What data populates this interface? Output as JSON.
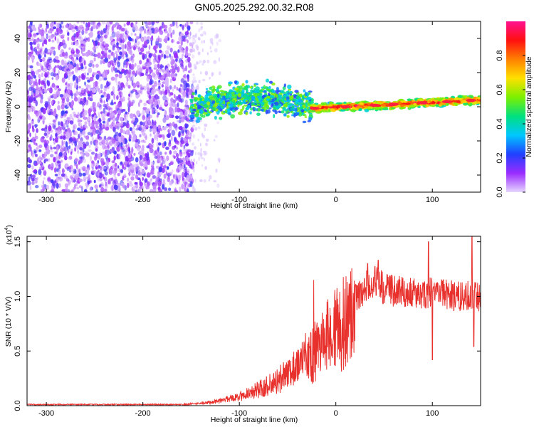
{
  "title": "GN05.2025.292.00.32.R08",
  "colors": {
    "snr_line": "#e8302c",
    "spectrogram_background": "#ffffff",
    "noise_light": "#ddc8ff",
    "noise_dark": "#7a00ee",
    "signal_core": "#ff2040"
  },
  "chart_data": [
    {
      "id": "spectrogram",
      "type": "heatmap",
      "xlabel": "Height of straight line (km)",
      "ylabel": "Frequency (Hz)",
      "xlim": [
        -320,
        150
      ],
      "ylim": [
        -50,
        50
      ],
      "xticks": [
        -300,
        -200,
        -100,
        0,
        100
      ],
      "xtick_labels": [
        "-300",
        "-200",
        "-100",
        "0",
        "100"
      ],
      "yticks": [
        -40,
        -20,
        0,
        20,
        40
      ],
      "ytick_labels": [
        "-40",
        "-20",
        "0",
        "20",
        "40"
      ],
      "colorbar": {
        "label": "Normalized spectral amplitude",
        "range": [
          0,
          1
        ],
        "ticks": [
          0.0,
          0.2,
          0.4,
          0.6,
          0.8
        ],
        "tick_labels": [
          "0.0",
          "0.2",
          "0.4",
          "0.6",
          "0.8"
        ],
        "colormap": [
          "#e6d6ff",
          "#9a2cff",
          "#2040ff",
          "#00c8ff",
          "#00e080",
          "#7cf000",
          "#ffe000",
          "#ff8000",
          "#ff1010",
          "#ff1090"
        ]
      },
      "regions": [
        {
          "name": "noise",
          "x_range": [
            -320,
            -148
          ],
          "freq_range": [
            -50,
            50
          ],
          "amplitude": [
            0.0,
            0.2
          ]
        },
        {
          "name": "sparse-noise",
          "x_range": [
            -148,
            -120
          ],
          "freq_range": [
            -50,
            50
          ],
          "amplitude": [
            0.0,
            0.1
          ]
        },
        {
          "name": "turbulent-trace",
          "x_range": [
            -150,
            -25
          ],
          "freq_center": [
            0,
            5
          ],
          "freq_halfwidth": 6,
          "amplitude": [
            0.2,
            0.6
          ]
        },
        {
          "name": "coherent-trace",
          "x_range": [
            -25,
            150
          ],
          "freq_center": [
            -1,
            4
          ],
          "freq_halfwidth": 3,
          "amplitude": [
            0.5,
            1.0
          ]
        }
      ]
    },
    {
      "id": "snr",
      "type": "line",
      "xlabel": "Height of straight line (km)",
      "ylabel": "SNR (10 * V/V)",
      "scale_label": "(x10",
      "scale_exponent": "4",
      "scale_label_end": ")",
      "xlim": [
        -320,
        150
      ],
      "ylim": [
        0,
        1.55
      ],
      "xticks": [
        -300,
        -200,
        -100,
        0,
        100
      ],
      "xtick_labels": [
        "-300",
        "-200",
        "-100",
        "0",
        "100"
      ],
      "yticks": [
        0.0,
        0.5,
        1.0,
        1.5
      ],
      "ytick_labels": [
        "0.0",
        "0.5",
        "1.0",
        "1.5"
      ],
      "envelope_x": [
        -320,
        -160,
        -140,
        -120,
        -100,
        -80,
        -60,
        -40,
        -30,
        -20,
        -10,
        0,
        10,
        20,
        30,
        40,
        50,
        60,
        70,
        80,
        90,
        100,
        110,
        120,
        130,
        140,
        150
      ],
      "envelope_y": [
        0.01,
        0.01,
        0.02,
        0.04,
        0.08,
        0.14,
        0.22,
        0.33,
        0.45,
        0.6,
        0.72,
        0.82,
        0.9,
        0.98,
        1.07,
        1.15,
        1.07,
        1.05,
        1.04,
        1.03,
        1.03,
        1.04,
        1.02,
        1.01,
        1.0,
        1.0,
        0.99
      ],
      "peaks": [
        {
          "x": -23,
          "y": 1.15
        },
        {
          "x": -18,
          "y": 0.72
        },
        {
          "x": 33,
          "y": 1.3
        },
        {
          "x": 44,
          "y": 1.33
        },
        {
          "x": 96,
          "y": 1.5
        },
        {
          "x": 100,
          "y": 0.42
        },
        {
          "x": 141,
          "y": 1.56
        },
        {
          "x": 143,
          "y": 0.54
        }
      ]
    }
  ]
}
